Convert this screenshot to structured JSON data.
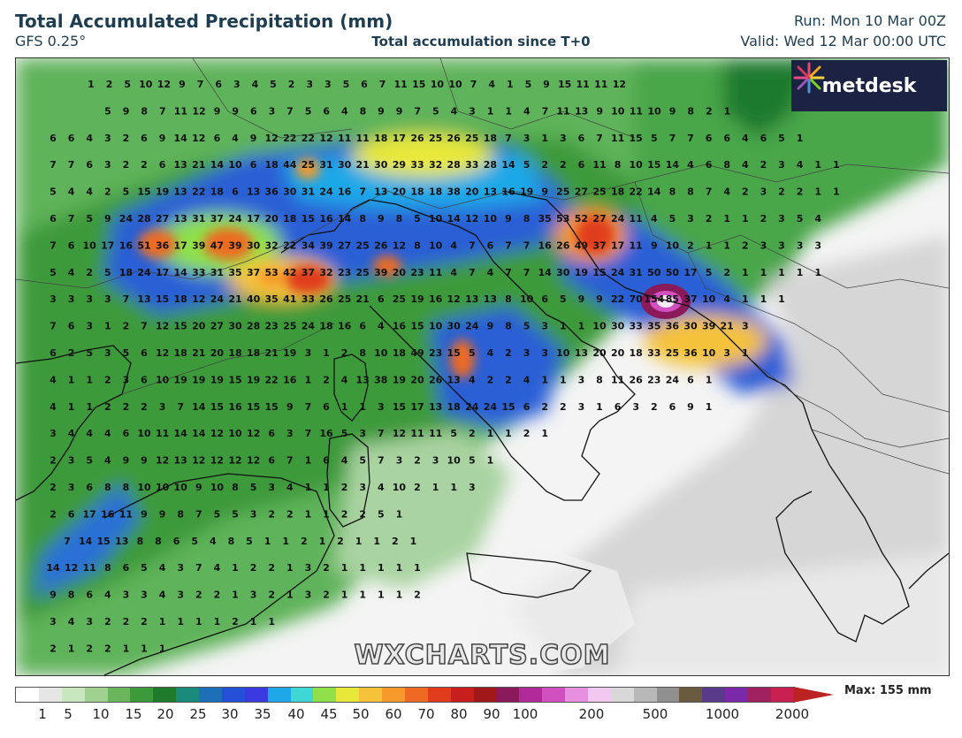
{
  "header": {
    "title": "Total Accumulated Precipitation (mm)",
    "model": "GFS 0.25°",
    "subtitle": "Total accumulation since T+0",
    "run": "Run: Mon 10 Mar 00Z",
    "valid": "Valid: Wed 12 Mar 00:00 UTC"
  },
  "logo": {
    "text": "metdesk"
  },
  "watermark": "WXCHARTS.COM",
  "legend": {
    "max_label": "Max: 155 mm",
    "ticks": [
      "1",
      "5",
      "10",
      "15",
      "20",
      "25",
      "30",
      "35",
      "40",
      "45",
      "50",
      "60",
      "70",
      "80",
      "90",
      "100",
      "200",
      "500",
      "1000",
      "2000"
    ],
    "colors": [
      "#ffffff",
      "#e6e6e6",
      "#c8e6c0",
      "#9fd08f",
      "#6bb55c",
      "#3d9a3a",
      "#207a2b",
      "#1a8a7a",
      "#1d6fb8",
      "#2450d8",
      "#3a3ae0",
      "#1fa8e8",
      "#3fd6d6",
      "#8fe04a",
      "#e8e83a",
      "#f5c23a",
      "#f59a2a",
      "#ee6a22",
      "#e03c1c",
      "#c81e1e",
      "#a01818",
      "#8a1a5a",
      "#b02a9a",
      "#d050c0",
      "#e890e0",
      "#f0c8f0",
      "#d8d8d8",
      "#b8b8b8",
      "#909090",
      "#6a5a40",
      "#5a3a8a",
      "#7a2aa8",
      "#a02060",
      "#c82050"
    ]
  },
  "values": {
    "r0": [
      "1",
      "2",
      "5",
      "10",
      "12",
      "9",
      "7",
      "6",
      "3",
      "4",
      "5",
      "2",
      "3",
      "3",
      "5",
      "6",
      "7",
      "11",
      "15",
      "10",
      "10",
      "7",
      "4",
      "1",
      "5",
      "9",
      "15",
      "11",
      "11",
      "12"
    ],
    "r1": [
      "5",
      "9",
      "8",
      "7",
      "11",
      "12",
      "9",
      "9",
      "6",
      "3",
      "7",
      "5",
      "6",
      "4",
      "8",
      "9",
      "9",
      "7",
      "5",
      "4",
      "3",
      "1",
      "1",
      "4",
      "7",
      "11",
      "13",
      "9",
      "10",
      "11",
      "10",
      "9",
      "8",
      "2",
      "1"
    ],
    "r2": [
      "6",
      "6",
      "4",
      "3",
      "2",
      "6",
      "9",
      "14",
      "12",
      "6",
      "4",
      "9",
      "12",
      "22",
      "22",
      "12",
      "11",
      "11",
      "18",
      "17",
      "26",
      "25",
      "26",
      "25",
      "18",
      "7",
      "3",
      "1",
      "3",
      "6",
      "7",
      "11",
      "15",
      "5",
      "7",
      "7",
      "6",
      "6",
      "4",
      "6",
      "5",
      "1"
    ],
    "r3": [
      "7",
      "7",
      "6",
      "3",
      "2",
      "2",
      "6",
      "13",
      "21",
      "14",
      "10",
      "6",
      "18",
      "44",
      "25",
      "31",
      "30",
      "21",
      "30",
      "29",
      "33",
      "32",
      "28",
      "33",
      "28",
      "14",
      "5",
      "2",
      "2",
      "6",
      "11",
      "8",
      "10",
      "15",
      "14",
      "4",
      "6",
      "8",
      "4",
      "2",
      "3",
      "4",
      "1",
      "1"
    ],
    "r4": [
      "5",
      "4",
      "4",
      "2",
      "5",
      "15",
      "19",
      "13",
      "22",
      "18",
      "6",
      "13",
      "36",
      "30",
      "31",
      "24",
      "16",
      "7",
      "13",
      "20",
      "18",
      "18",
      "38",
      "20",
      "13",
      "16",
      "19",
      "9",
      "25",
      "27",
      "25",
      "18",
      "22",
      "14",
      "8",
      "8",
      "7",
      "4",
      "2",
      "3",
      "2",
      "2",
      "1",
      "1"
    ],
    "r5": [
      "6",
      "7",
      "5",
      "9",
      "24",
      "28",
      "27",
      "13",
      "31",
      "37",
      "24",
      "17",
      "20",
      "18",
      "15",
      "16",
      "14",
      "8",
      "9",
      "8",
      "5",
      "10",
      "14",
      "12",
      "10",
      "9",
      "8",
      "35",
      "53",
      "52",
      "27",
      "24",
      "11",
      "4",
      "5",
      "3",
      "2",
      "1",
      "1",
      "2",
      "3",
      "5",
      "4"
    ],
    "r6": [
      "7",
      "6",
      "10",
      "17",
      "16",
      "51",
      "36",
      "17",
      "39",
      "47",
      "39",
      "30",
      "32",
      "22",
      "34",
      "39",
      "27",
      "25",
      "26",
      "12",
      "8",
      "10",
      "4",
      "7",
      "6",
      "7",
      "7",
      "16",
      "26",
      "49",
      "37",
      "17",
      "11",
      "9",
      "10",
      "2",
      "1",
      "1",
      "2",
      "3",
      "3",
      "3",
      "3"
    ],
    "r7": [
      "5",
      "4",
      "2",
      "5",
      "18",
      "24",
      "17",
      "14",
      "33",
      "31",
      "35",
      "37",
      "53",
      "42",
      "37",
      "32",
      "23",
      "25",
      "39",
      "20",
      "23",
      "11",
      "4",
      "7",
      "4",
      "7",
      "7",
      "14",
      "30",
      "19",
      "15",
      "24",
      "31",
      "50",
      "50",
      "17",
      "5",
      "2",
      "1",
      "1",
      "1",
      "1",
      "1"
    ],
    "r8": [
      "3",
      "3",
      "3",
      "3",
      "7",
      "13",
      "15",
      "18",
      "12",
      "24",
      "21",
      "40",
      "35",
      "41",
      "33",
      "26",
      "25",
      "21",
      "6",
      "25",
      "19",
      "16",
      "12",
      "13",
      "13",
      "8",
      "10",
      "6",
      "5",
      "9",
      "9",
      "22",
      "70",
      "154",
      "85",
      "37",
      "10",
      "4",
      "1",
      "1",
      "1"
    ],
    "r9": [
      "7",
      "6",
      "3",
      "1",
      "2",
      "7",
      "12",
      "15",
      "20",
      "27",
      "30",
      "28",
      "23",
      "25",
      "24",
      "18",
      "16",
      "6",
      "4",
      "16",
      "15",
      "10",
      "30",
      "24",
      "9",
      "8",
      "5",
      "3",
      "1",
      "1",
      "10",
      "30",
      "33",
      "35",
      "36",
      "30",
      "39",
      "21",
      "3"
    ],
    "r10": [
      "6",
      "2",
      "5",
      "3",
      "5",
      "6",
      "12",
      "18",
      "21",
      "20",
      "18",
      "18",
      "21",
      "19",
      "3",
      "1",
      "2",
      "8",
      "10",
      "18",
      "49",
      "23",
      "15",
      "5",
      "4",
      "2",
      "3",
      "3",
      "10",
      "13",
      "20",
      "20",
      "18",
      "33",
      "25",
      "36",
      "10",
      "3",
      "1"
    ],
    "r11": [
      "4",
      "1",
      "1",
      "2",
      "3",
      "6",
      "10",
      "19",
      "19",
      "19",
      "15",
      "19",
      "22",
      "16",
      "1",
      "2",
      "4",
      "13",
      "38",
      "19",
      "20",
      "26",
      "13",
      "4",
      "2",
      "2",
      "4",
      "1",
      "1",
      "3",
      "8",
      "11",
      "26",
      "23",
      "24",
      "6",
      "1"
    ],
    "r12": [
      "4",
      "1",
      "1",
      "2",
      "2",
      "2",
      "3",
      "7",
      "14",
      "15",
      "16",
      "15",
      "15",
      "9",
      "7",
      "6",
      "1",
      "1",
      "3",
      "15",
      "17",
      "13",
      "18",
      "24",
      "24",
      "15",
      "6",
      "2",
      "2",
      "3",
      "1",
      "6",
      "3",
      "2",
      "6",
      "9",
      "1"
    ],
    "r13": [
      "3",
      "4",
      "4",
      "4",
      "6",
      "10",
      "11",
      "14",
      "14",
      "12",
      "10",
      "12",
      "6",
      "3",
      "7",
      "16",
      "5",
      "3",
      "7",
      "12",
      "11",
      "11",
      "5",
      "2",
      "1",
      "1",
      "2",
      "1"
    ],
    "r14": [
      "2",
      "3",
      "5",
      "4",
      "9",
      "9",
      "12",
      "13",
      "12",
      "12",
      "12",
      "12",
      "6",
      "7",
      "1",
      "6",
      "4",
      "5",
      "7",
      "3",
      "2",
      "3",
      "10",
      "5",
      "1"
    ],
    "r15": [
      "2",
      "3",
      "6",
      "8",
      "8",
      "10",
      "10",
      "10",
      "9",
      "10",
      "8",
      "5",
      "3",
      "4",
      "1",
      "1",
      "2",
      "3",
      "4",
      "10",
      "2",
      "1",
      "1",
      "3"
    ],
    "r16": [
      "2",
      "6",
      "17",
      "16",
      "11",
      "9",
      "9",
      "8",
      "7",
      "5",
      "5",
      "3",
      "2",
      "2",
      "1",
      "1",
      "2",
      "2",
      "5",
      "1"
    ],
    "r17": [
      "7",
      "14",
      "15",
      "13",
      "8",
      "8",
      "6",
      "5",
      "4",
      "8",
      "5",
      "1",
      "1",
      "2",
      "1",
      "2",
      "1",
      "1",
      "2",
      "1"
    ],
    "r18": [
      "14",
      "12",
      "11",
      "8",
      "6",
      "5",
      "4",
      "3",
      "7",
      "4",
      "1",
      "2",
      "2",
      "1",
      "3",
      "2",
      "1",
      "1",
      "1",
      "1",
      "1"
    ],
    "r19": [
      "9",
      "8",
      "6",
      "4",
      "3",
      "3",
      "4",
      "3",
      "2",
      "2",
      "1",
      "3",
      "2",
      "1",
      "3",
      "2",
      "1",
      "1",
      "1",
      "1",
      "2"
    ],
    "r20": [
      "3",
      "4",
      "3",
      "2",
      "2",
      "2",
      "1",
      "1",
      "1",
      "1",
      "2",
      "1",
      "1"
    ],
    "r21": [
      "2",
      "1",
      "2",
      "2",
      "1",
      "1",
      "1"
    ]
  }
}
